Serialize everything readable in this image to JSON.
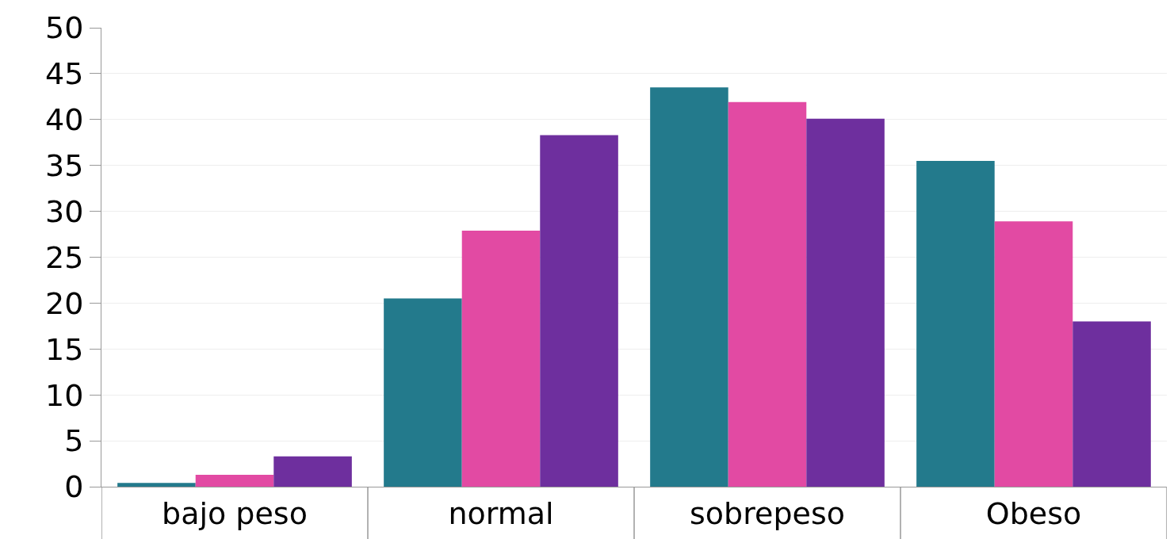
{
  "chart_data": {
    "type": "bar",
    "categories": [
      "bajo peso",
      "normal",
      "sobrepeso",
      "Obeso"
    ],
    "series": [
      {
        "color": "#237a8c",
        "values": [
          0.4,
          20.5,
          43.5,
          35.5
        ]
      },
      {
        "color": "#e24aa3",
        "values": [
          1.3,
          27.9,
          41.9,
          28.9
        ]
      },
      {
        "color": "#6e2f9e",
        "values": [
          3.3,
          38.3,
          40.1,
          18.0
        ]
      }
    ],
    "ylim": [
      0,
      50
    ],
    "yticks": [
      0,
      5,
      10,
      15,
      20,
      25,
      30,
      35,
      40,
      45,
      50
    ],
    "grid": "y"
  }
}
